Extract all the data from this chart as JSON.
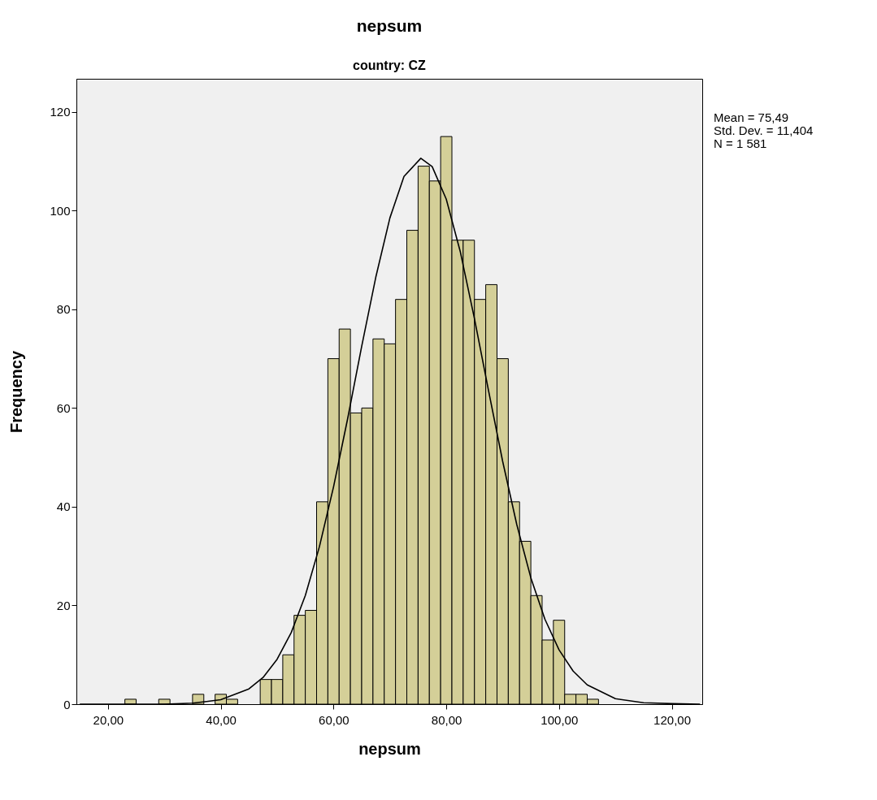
{
  "chart_data": {
    "type": "histogram",
    "title": "nepsum",
    "subtitle": "country: CZ",
    "xlabel": "nepsum",
    "ylabel": "Frequency",
    "bins": [
      23,
      25,
      27,
      29,
      31,
      33,
      35,
      37,
      39,
      41,
      43,
      45,
      47,
      49,
      51,
      53,
      55,
      57,
      59,
      61,
      63,
      65,
      67,
      69,
      71,
      73,
      75,
      77,
      79,
      81,
      83,
      85,
      87,
      89,
      91,
      93,
      95,
      97,
      99,
      101,
      103,
      105,
      107
    ],
    "values": [
      1,
      0,
      0,
      1,
      0,
      0,
      2,
      0,
      2,
      1,
      0,
      0,
      5,
      5,
      10,
      18,
      19,
      41,
      70,
      76,
      59,
      60,
      74,
      73,
      82,
      96,
      109,
      106,
      115,
      94,
      94,
      82,
      85,
      70,
      41,
      33,
      22,
      13,
      17,
      2,
      2,
      1
    ],
    "color": "#d4cf98",
    "series": [
      {
        "type": "line",
        "color": "#000000",
        "x": [
          15,
          25,
          30,
          35,
          40,
          45,
          47.5,
          50,
          52.5,
          55,
          57.5,
          60,
          62.5,
          65,
          67.5,
          70,
          72.5,
          75.49,
          77.5,
          80,
          82.5,
          85,
          87.5,
          90,
          92.5,
          95,
          97.5,
          100,
          102.5,
          105,
          110,
          115,
          120,
          125
        ],
        "values": [
          0,
          0,
          0,
          0.2,
          0.9,
          3.1,
          5.4,
          9.1,
          14.5,
          22,
          31.9,
          44,
          57.8,
          72.5,
          86.5,
          98.5,
          106.9,
          110.6,
          108.9,
          102.3,
          91.6,
          78.1,
          63.5,
          49.2,
          36.4,
          25.6,
          17.2,
          11,
          6.7,
          3.9,
          1.1,
          0.3,
          0.1,
          0
        ]
      }
    ],
    "xlim": [
      14.4,
      125.4
    ],
    "ylim": [
      0,
      126.7
    ],
    "xticks": [
      {
        "value": 20,
        "label": "20,00"
      },
      {
        "value": 40,
        "label": "40,00"
      },
      {
        "value": 60,
        "label": "60,00"
      },
      {
        "value": 80,
        "label": "80,00"
      },
      {
        "value": 100,
        "label": "100,00"
      },
      {
        "value": 120,
        "label": "120,00"
      }
    ],
    "yticks": [
      0,
      20,
      40,
      60,
      80,
      100,
      120
    ],
    "annotations": [
      "Mean = 75,49",
      "Std. Dev. = 11,404",
      "N = 1 581"
    ]
  }
}
